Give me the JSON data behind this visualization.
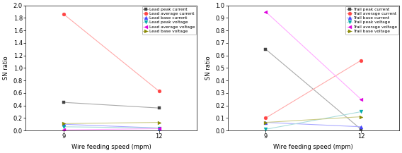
{
  "left": {
    "xlabel": "Wire feeding speed (mpm)",
    "ylabel": "SN ratio",
    "x": [
      9,
      12
    ],
    "series": [
      {
        "label": "Lead peak current",
        "color": "#444444",
        "marker": "s",
        "line_color": "#aaaaaa",
        "values": [
          0.45,
          0.36
        ]
      },
      {
        "label": "Lead average current",
        "color": "#ff4444",
        "marker": "o",
        "line_color": "#ffaaaa",
        "values": [
          1.86,
          0.63
        ]
      },
      {
        "label": "Lead base current",
        "color": "#4444ff",
        "marker": "^",
        "line_color": "#aaaaff",
        "values": [
          0.1,
          0.04
        ]
      },
      {
        "label": "Lead peak voltage",
        "color": "#00aaaa",
        "marker": "v",
        "line_color": "#aadddd",
        "values": [
          0.06,
          0.04
        ]
      },
      {
        "label": "Lead average voltage",
        "color": "#dd00dd",
        "marker": "<",
        "line_color": "#ffaaff",
        "values": [
          0.01,
          0.03
        ]
      },
      {
        "label": "Lead base voltage",
        "color": "#888800",
        "marker": ">",
        "line_color": "#cccc88",
        "values": [
          0.11,
          0.13
        ]
      }
    ],
    "ylim": [
      0,
      2.0
    ],
    "yticks": [
      0.0,
      0.2,
      0.4,
      0.6,
      0.8,
      1.0,
      1.2,
      1.4,
      1.6,
      1.8,
      2.0
    ]
  },
  "right": {
    "xlabel": "Wire feeding speed (mpm)",
    "ylabel": "SN ratio",
    "x": [
      9,
      12
    ],
    "series": [
      {
        "label": "Trail peak current",
        "color": "#444444",
        "marker": "s",
        "line_color": "#aaaaaa",
        "values": [
          0.65,
          0.01
        ]
      },
      {
        "label": "Trail average current",
        "color": "#ff4444",
        "marker": "o",
        "line_color": "#ffaaaa",
        "values": [
          0.1,
          0.56
        ]
      },
      {
        "label": "Trail base current",
        "color": "#4444ff",
        "marker": "^",
        "line_color": "#aaaaff",
        "values": [
          0.065,
          0.03
        ]
      },
      {
        "label": "Trail peak voltage",
        "color": "#00aaaa",
        "marker": "v",
        "line_color": "#aadddd",
        "values": [
          0.01,
          0.15
        ]
      },
      {
        "label": "Trail average voltage",
        "color": "#dd00dd",
        "marker": "<",
        "line_color": "#ffaaff",
        "values": [
          0.95,
          0.25
        ]
      },
      {
        "label": "Trail base voltage",
        "color": "#888800",
        "marker": ">",
        "line_color": "#cccc88",
        "values": [
          0.065,
          0.11
        ]
      }
    ],
    "ylim": [
      0,
      1.0
    ],
    "yticks": [
      0.0,
      0.1,
      0.2,
      0.3,
      0.4,
      0.5,
      0.6,
      0.7,
      0.8,
      0.9,
      1.0
    ]
  }
}
